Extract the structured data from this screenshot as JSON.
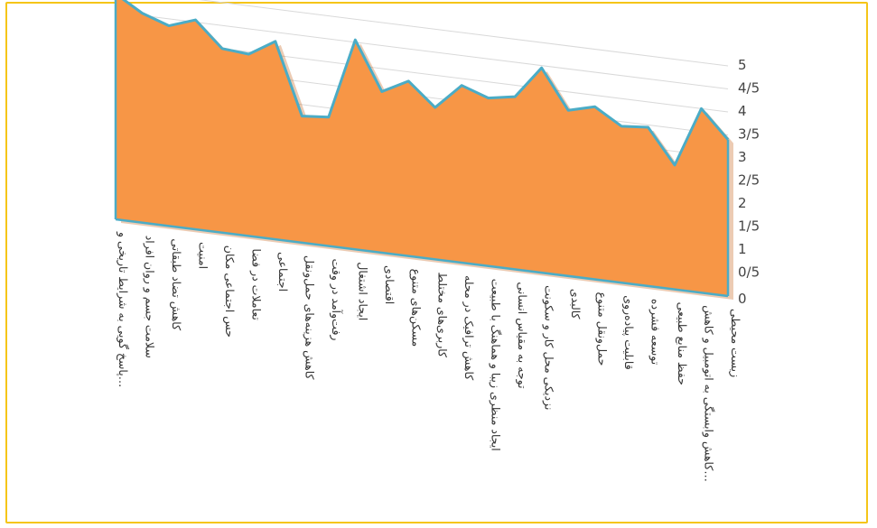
{
  "chart_data": {
    "type": "area",
    "title": "",
    "xlabel": "",
    "ylabel": "",
    "ylim": [
      0,
      5
    ],
    "grid": true,
    "legend": "none",
    "yticks": [
      "0",
      "0/5",
      "1",
      "1/5",
      "2",
      "2/5",
      "3",
      "3/5",
      "4",
      "4/5",
      "5"
    ],
    "categories": [
      "پاسخ گویی به شرایط تاریخی و…",
      "سلامت جسم و روان افراد",
      "کاهش تضاد طبقاتی",
      "امنیت",
      "حس اجتماعی مکان",
      "تعاملات در فضا",
      "اجتماعی",
      "کاهش هزینه‌های حمل‌ونقل",
      "رفت‌وآمد در وقت",
      "ایجاد اشتغال",
      "اقتصادی",
      "مسکن‌های متنوع",
      "کاربری‌های مختلط",
      "کاهش ترافیک در محله",
      "ایجاد منظری زیبا و هماهنگ با طبیعت",
      "توجه به مقیاس انسانی",
      "نزدیکی محل کار و سکونت",
      "کالبدی",
      "حمل‌ونقل متنوع",
      "قابلیت پیاده‌روی",
      "توسعه فشرده",
      "حفظ منابع طبیعی",
      "کاهش وابستگی به اتومبیل و کاهش…",
      "زیست محیطی"
    ],
    "values": [
      4.9,
      4.55,
      4.35,
      4.55,
      4.0,
      3.95,
      4.3,
      2.75,
      2.8,
      4.55,
      3.5,
      3.8,
      3.3,
      3.85,
      3.65,
      3.75,
      4.45,
      3.6,
      3.75,
      3.4,
      3.45,
      2.7,
      4.0,
      3.4
    ],
    "colors": {
      "fill": "#f79646",
      "fill_dark": "#c86a24",
      "edge": "#4bacc6",
      "grid": "#d9d9d9",
      "frame": "#f5c518"
    }
  }
}
